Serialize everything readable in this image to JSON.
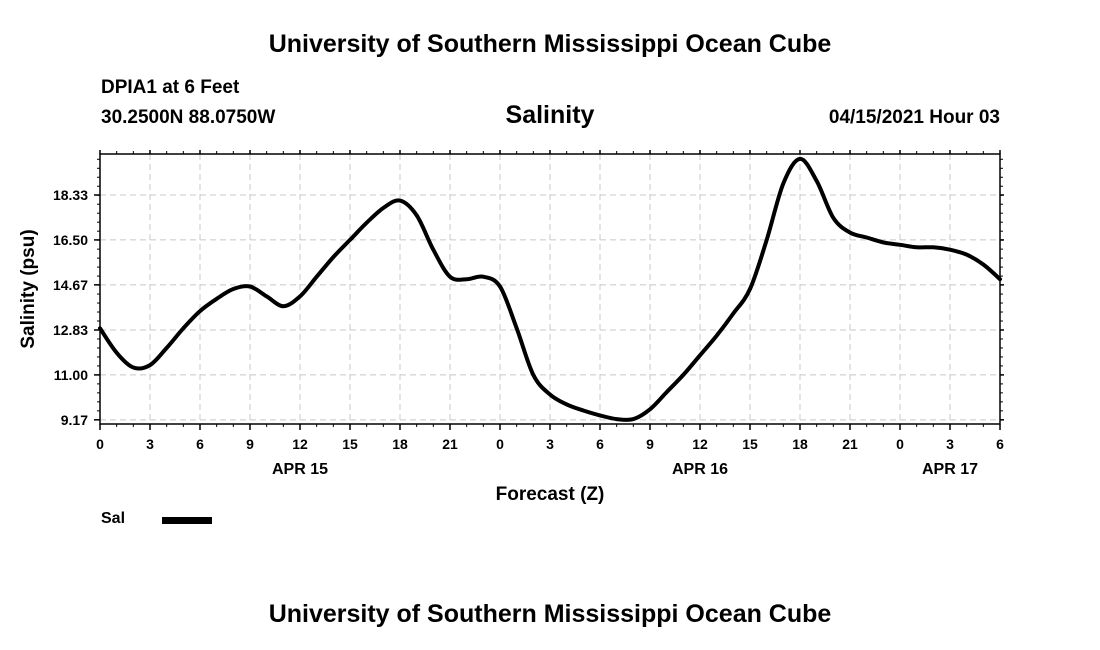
{
  "header": {
    "title": "University of Southern Mississippi Ocean Cube",
    "station": "DPIA1 at 6 Feet",
    "coords": "30.2500N  88.0750W",
    "parameter": "Salinity",
    "timestamp": "04/15/2021 Hour 03"
  },
  "footer": {
    "title": "University of Southern Mississippi Ocean Cube"
  },
  "legend": {
    "label": "Sal",
    "color": "#000000"
  },
  "chart_data": {
    "type": "line",
    "title": "Salinity",
    "xlabel": "Forecast (Z)",
    "ylabel": "Salinity (psu)",
    "grid": true,
    "ylim": [
      9.0,
      20.0
    ],
    "y_ticks": [
      9.17,
      11.0,
      12.83,
      14.67,
      16.5,
      18.33
    ],
    "y_tick_labels": [
      "9.17",
      "11.00",
      "12.83",
      "14.67",
      "16.50",
      "18.33"
    ],
    "xlim": [
      0,
      54
    ],
    "x_ticks": [
      0,
      3,
      6,
      9,
      12,
      15,
      18,
      21,
      24,
      27,
      30,
      33,
      36,
      39,
      42,
      45,
      48,
      51,
      54
    ],
    "x_tick_labels": [
      "0",
      "3",
      "6",
      "9",
      "12",
      "15",
      "18",
      "21",
      "0",
      "3",
      "6",
      "9",
      "12",
      "15",
      "18",
      "21",
      "0",
      "3",
      "6"
    ],
    "date_labels": [
      {
        "x": 12,
        "label": "APR 15"
      },
      {
        "x": 36,
        "label": "APR 16"
      },
      {
        "x": 51,
        "label": "APR 17"
      }
    ],
    "series": [
      {
        "name": "Sal",
        "color": "#000000",
        "x": [
          0,
          1,
          2,
          3,
          4,
          5,
          6,
          7,
          8,
          9,
          10,
          11,
          12,
          13,
          14,
          15,
          16,
          17,
          18,
          19,
          20,
          21,
          22,
          23,
          24,
          25,
          26,
          27,
          28,
          29,
          30,
          31,
          32,
          33,
          34,
          35,
          36,
          37,
          38,
          39,
          40,
          41,
          42,
          43,
          44,
          45,
          46,
          47,
          48,
          49,
          50,
          51,
          52,
          53,
          54
        ],
        "values": [
          12.9,
          11.9,
          11.3,
          11.4,
          12.1,
          12.9,
          13.6,
          14.1,
          14.5,
          14.6,
          14.2,
          13.8,
          14.2,
          15.0,
          15.8,
          16.5,
          17.2,
          17.8,
          18.1,
          17.5,
          16.1,
          15.0,
          14.9,
          15.0,
          14.6,
          12.9,
          11.0,
          10.2,
          9.8,
          9.55,
          9.35,
          9.2,
          9.2,
          9.6,
          10.3,
          11.0,
          11.8,
          12.6,
          13.5,
          14.5,
          16.5,
          18.8,
          19.8,
          18.9,
          17.4,
          16.8,
          16.6,
          16.4,
          16.3,
          16.2,
          16.2,
          16.1,
          15.9,
          15.5,
          14.9
        ]
      }
    ]
  }
}
